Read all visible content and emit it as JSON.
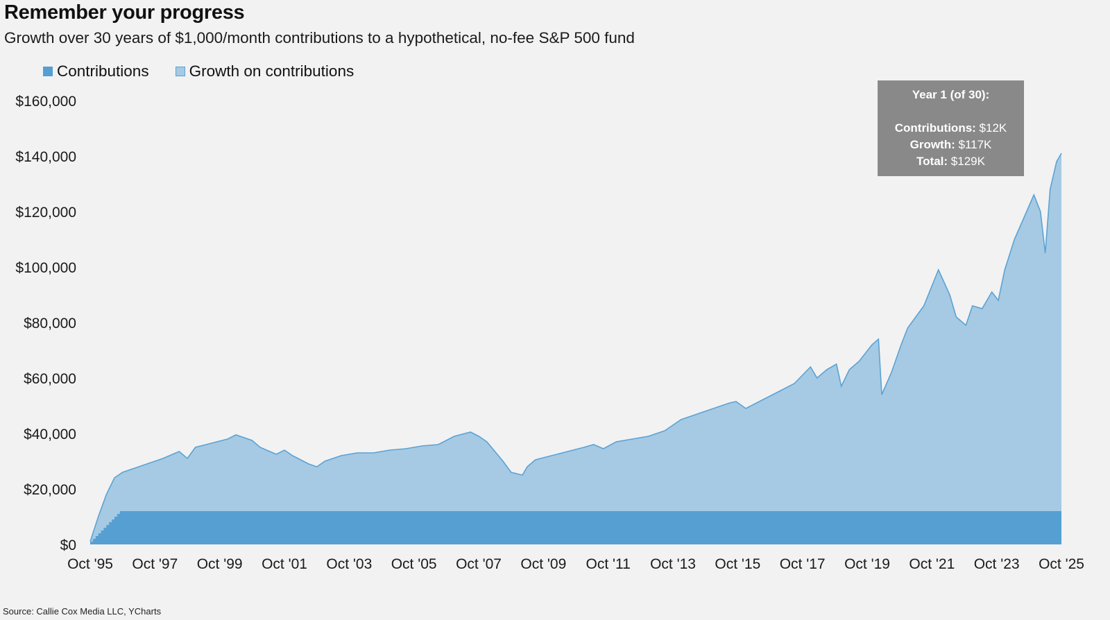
{
  "title": "Remember your progress",
  "subtitle": "Growth over 30 years of $1,000/month contributions to a hypothetical, no-fee S&P 500 fund",
  "source": "Source: Callie Cox Media LLC, YCharts",
  "legend": [
    {
      "label": "Contributions",
      "color": "#559fd3"
    },
    {
      "label": "Growth on contributions",
      "color": "#a6cae3"
    }
  ],
  "tooltip": {
    "heading": "Year 1 (of 30):",
    "contributions_label": "Contributions:",
    "contributions_value": " $12K",
    "growth_label": "Growth:",
    "growth_value": " $117K",
    "total_label": "Total:",
    "total_value": " $129K"
  },
  "chart_data": {
    "type": "area",
    "ylim": [
      0,
      160000
    ],
    "y_ticks": [
      0,
      20000,
      40000,
      60000,
      80000,
      100000,
      120000,
      140000,
      160000
    ],
    "y_tick_labels": [
      "$0",
      "$20,000",
      "$40,000",
      "$60,000",
      "$80,000",
      "$100,000",
      "$120,000",
      "$140,000",
      "$160,000"
    ],
    "x_ticks": [
      1995.75,
      1997.75,
      1999.75,
      2001.75,
      2003.75,
      2005.75,
      2007.75,
      2009.75,
      2011.75,
      2013.75,
      2015.75,
      2017.75,
      2019.75,
      2021.75,
      2023.75,
      2025.75
    ],
    "x_tick_labels": [
      "Oct '95",
      "Oct '97",
      "Oct '99",
      "Oct '01",
      "Oct '03",
      "Oct '05",
      "Oct '07",
      "Oct '09",
      "Oct '11",
      "Oct '13",
      "Oct '15",
      "Oct '17",
      "Oct '19",
      "Oct '21",
      "Oct '23",
      "Oct '25"
    ],
    "xlim": [
      1995.75,
      2025.75
    ],
    "colors": {
      "contributions": "#559fd3",
      "growth_fill": "#a6cae3",
      "growth_line": "#5aa2d5"
    },
    "series": [
      {
        "name": "Contributions",
        "x": [
          1995.75,
          1996.75,
          2025.75
        ],
        "values": [
          1000,
          12000,
          12000
        ]
      },
      {
        "name": "Growth on contributions",
        "x": [
          1995.75,
          1996.0,
          1996.25,
          1996.5,
          1996.75,
          1997.0,
          1997.5,
          1998.0,
          1998.5,
          1998.75,
          1999.0,
          1999.5,
          2000.0,
          2000.25,
          2000.75,
          2001.0,
          2001.5,
          2001.75,
          2002.0,
          2002.5,
          2002.75,
          2003.0,
          2003.5,
          2004.0,
          2004.5,
          2005.0,
          2005.5,
          2006.0,
          2006.5,
          2007.0,
          2007.5,
          2007.75,
          2008.0,
          2008.5,
          2008.75,
          2009.1,
          2009.25,
          2009.5,
          2010.0,
          2010.5,
          2011.0,
          2011.3,
          2011.6,
          2012.0,
          2012.5,
          2013.0,
          2013.5,
          2014.0,
          2014.5,
          2015.0,
          2015.5,
          2015.7,
          2016.0,
          2016.5,
          2017.0,
          2017.5,
          2018.0,
          2018.2,
          2018.5,
          2018.8,
          2018.95,
          2019.2,
          2019.5,
          2019.9,
          2020.1,
          2020.2,
          2020.5,
          2020.8,
          2021.0,
          2021.5,
          2021.95,
          2022.3,
          2022.5,
          2022.8,
          2023.0,
          2023.3,
          2023.6,
          2023.8,
          2024.0,
          2024.3,
          2024.6,
          2024.9,
          2025.1,
          2025.25,
          2025.4,
          2025.6,
          2025.75
        ],
        "values": [
          1000,
          10000,
          18000,
          24000,
          26000,
          27000,
          29000,
          31000,
          33500,
          31000,
          35000,
          36500,
          38000,
          39500,
          37500,
          35000,
          32500,
          34000,
          32000,
          29000,
          28000,
          30000,
          32000,
          33000,
          33000,
          34000,
          34500,
          35500,
          36000,
          39000,
          40500,
          39000,
          37000,
          30000,
          26000,
          25000,
          28000,
          30500,
          32000,
          33500,
          35000,
          36000,
          34500,
          37000,
          38000,
          39000,
          41000,
          45000,
          47000,
          49000,
          51000,
          51500,
          49000,
          52000,
          55000,
          58000,
          64000,
          60000,
          63000,
          65000,
          57000,
          63000,
          66000,
          72000,
          74000,
          54000,
          62000,
          72000,
          78000,
          86000,
          99000,
          90000,
          82000,
          79000,
          86000,
          85000,
          91000,
          88000,
          99000,
          110000,
          118000,
          126000,
          120000,
          105000,
          128000,
          138000,
          141000
        ]
      }
    ]
  }
}
